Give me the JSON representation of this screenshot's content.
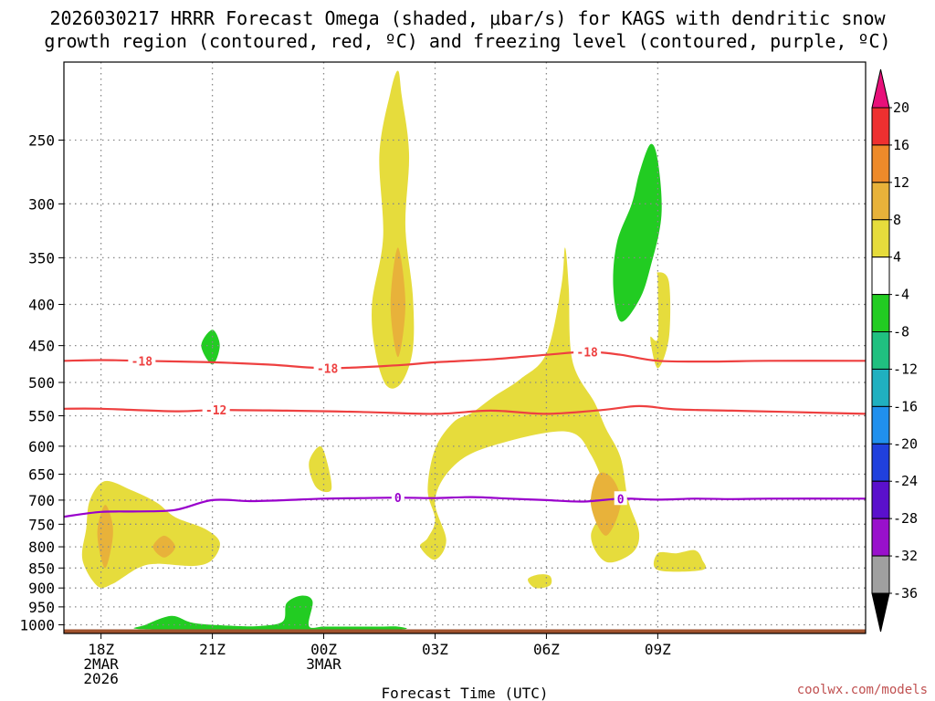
{
  "title": {
    "line1": "2026030217 HRRR Forecast Omega (shaded, μbar/s) for KAGS with dendritic snow",
    "line2": "growth region (contoured, red, ºC) and freezing level (contoured, purple, ºC)"
  },
  "credit": "coolwx.com/models",
  "chart_data": {
    "type": "time-height cross-section",
    "title": "2026030217 HRRR Forecast Omega (shaded, μbar/s) for KAGS with dendritic snow growth region (contoured, red, ºC) and freezing level (contoured, purple, ºC)",
    "xlabel": "Forecast Time (UTC)",
    "ylabel": "",
    "x_range_hours": [
      -1.0,
      20.6
    ],
    "y_range_hpa": [
      1025,
      200
    ],
    "y_scale": "log-pressure (inverted)",
    "x_ticks": [
      {
        "hour": 0,
        "lines": [
          "18Z",
          "2MAR",
          "2026"
        ]
      },
      {
        "hour": 3,
        "lines": [
          "21Z"
        ]
      },
      {
        "hour": 6,
        "lines": [
          "00Z",
          "3MAR"
        ]
      },
      {
        "hour": 9,
        "lines": [
          "03Z"
        ]
      },
      {
        "hour": 12,
        "lines": [
          "06Z"
        ]
      },
      {
        "hour": 15,
        "lines": [
          "09Z"
        ]
      }
    ],
    "y_ticks": [
      250,
      300,
      350,
      400,
      450,
      500,
      550,
      600,
      650,
      700,
      750,
      800,
      850,
      900,
      950,
      1000
    ],
    "colors": {
      "grid": "#888888",
      "dendritic_contour": "#ee4040",
      "freezing_contour": "#9900cc",
      "ground": "#a0522d"
    },
    "colorbar": {
      "labels": [
        "20",
        "16",
        "12",
        "8",
        "4",
        "-4",
        "-8",
        "-12",
        "-16",
        "-20",
        "-24",
        "-28",
        "-32",
        "-36"
      ],
      "colors": [
        "#e8e8e8",
        "#ee3030",
        "#ee8a2a",
        "#e8b23a",
        "#e6dc3c",
        "#ffffff",
        "#22cc22",
        "#20c080",
        "#20b0c0",
        "#2090ee",
        "#2040dd",
        "#5a10cc",
        "#9910cc",
        "#a0a0a0"
      ],
      "top_triangle": "#e8107a",
      "bottom_triangle": "#000000"
    },
    "contours": [
      {
        "name": "dendritic-contour-minus18",
        "label": "-18",
        "color": "#ee4040",
        "label_points": [
          {
            "hour": 1.1,
            "hpa": 470
          },
          {
            "hour": 6.1,
            "hpa": 480
          },
          {
            "hour": 13.1,
            "hpa": 458
          }
        ],
        "points": [
          [
            -1.0,
            470
          ],
          [
            0,
            469
          ],
          [
            1.1,
            470
          ],
          [
            3,
            472
          ],
          [
            4.5,
            475
          ],
          [
            6.1,
            480
          ],
          [
            8,
            476
          ],
          [
            9,
            472
          ],
          [
            10.5,
            468
          ],
          [
            12,
            462
          ],
          [
            13.1,
            458
          ],
          [
            14,
            462
          ],
          [
            15,
            470
          ],
          [
            16.5,
            471
          ],
          [
            18,
            470
          ],
          [
            20.6,
            470
          ]
        ]
      },
      {
        "name": "dendritic-contour-minus12",
        "label": "-12",
        "color": "#ee4040",
        "label_points": [
          {
            "hour": 3.1,
            "hpa": 541
          }
        ],
        "points": [
          [
            -1.0,
            539
          ],
          [
            0,
            539
          ],
          [
            2,
            543
          ],
          [
            3.1,
            541
          ],
          [
            5,
            542
          ],
          [
            7,
            544
          ],
          [
            9,
            547
          ],
          [
            10.5,
            542
          ],
          [
            12,
            547
          ],
          [
            13.5,
            541
          ],
          [
            14.5,
            535
          ],
          [
            15.5,
            540
          ],
          [
            17,
            542
          ],
          [
            18.5,
            544
          ],
          [
            20.6,
            547
          ]
        ]
      },
      {
        "name": "freezing-contour-0",
        "label": "0",
        "color": "#9900cc",
        "label_points": [
          {
            "hour": 8.0,
            "hpa": 695
          },
          {
            "hour": 14.0,
            "hpa": 697
          }
        ],
        "points": [
          [
            -1.0,
            734
          ],
          [
            0,
            724
          ],
          [
            1,
            723
          ],
          [
            2,
            720
          ],
          [
            3,
            700
          ],
          [
            4,
            702
          ],
          [
            5,
            700
          ],
          [
            6,
            697
          ],
          [
            7,
            696
          ],
          [
            8,
            695
          ],
          [
            9,
            696
          ],
          [
            10,
            694
          ],
          [
            11,
            697
          ],
          [
            12,
            700
          ],
          [
            13,
            703
          ],
          [
            14,
            697
          ],
          [
            15,
            699
          ],
          [
            16,
            697
          ],
          [
            17,
            698
          ],
          [
            18,
            697
          ],
          [
            20.6,
            697
          ]
        ]
      }
    ],
    "omega_regions": [
      {
        "name": "omega-plus4-blob-18z",
        "value": 4,
        "fill": "#e6dc3c",
        "points": [
          [
            -0.4,
            760
          ],
          [
            -0.5,
            830
          ],
          [
            -0.1,
            895
          ],
          [
            0.3,
            890
          ],
          [
            1.0,
            850
          ],
          [
            1.5,
            840
          ],
          [
            2.5,
            845
          ],
          [
            3.0,
            830
          ],
          [
            3.2,
            790
          ],
          [
            2.8,
            760
          ],
          [
            2.0,
            735
          ],
          [
            1.5,
            705
          ],
          [
            0.8,
            680
          ],
          [
            0.1,
            663
          ],
          [
            -0.3,
            700
          ]
        ]
      },
      {
        "name": "omega-plus8-core-18z",
        "value": 8,
        "fill": "#e8b23a",
        "points": [
          [
            0.1,
            710
          ],
          [
            -0.1,
            770
          ],
          [
            0.1,
            850
          ],
          [
            0.3,
            790
          ],
          [
            0.3,
            745
          ]
        ]
      },
      {
        "name": "omega-plus8-core-20z",
        "value": 8,
        "fill": "#e8b23a",
        "points": [
          [
            1.4,
            800
          ],
          [
            1.7,
            775
          ],
          [
            2.0,
            800
          ],
          [
            1.7,
            825
          ]
        ]
      },
      {
        "name": "omega-minus4-blob-21z",
        "value": -4,
        "fill": "#22cc22",
        "points": [
          [
            3.0,
            430
          ],
          [
            2.7,
            450
          ],
          [
            3.0,
            475
          ],
          [
            3.2,
            450
          ]
        ]
      },
      {
        "name": "omega-plus4-blob-2330z",
        "value": 4,
        "fill": "#e6dc3c",
        "points": [
          [
            5.6,
            630
          ],
          [
            5.8,
            675
          ],
          [
            6.2,
            680
          ],
          [
            6.1,
            630
          ],
          [
            5.9,
            600
          ]
        ]
      },
      {
        "name": "omega-plus4-plume-01z",
        "value": 4,
        "fill": "#e6dc3c",
        "points": [
          [
            7.8,
            218
          ],
          [
            7.5,
            260
          ],
          [
            7.6,
            330
          ],
          [
            7.3,
            400
          ],
          [
            7.4,
            460
          ],
          [
            7.7,
            505
          ],
          [
            8.1,
            500
          ],
          [
            8.4,
            455
          ],
          [
            8.4,
            390
          ],
          [
            8.2,
            320
          ],
          [
            8.3,
            260
          ],
          [
            8.1,
            220
          ],
          [
            8.0,
            205
          ]
        ]
      },
      {
        "name": "omega-plus8-core-01z",
        "value": 8,
        "fill": "#e8b23a",
        "points": [
          [
            8.0,
            340
          ],
          [
            7.8,
            400
          ],
          [
            8.0,
            465
          ],
          [
            8.2,
            400
          ]
        ]
      },
      {
        "name": "omega-plus4-arch-03z",
        "value": 4,
        "fill": "#e6dc3c",
        "points": [
          [
            8.6,
            800
          ],
          [
            9.0,
            830
          ],
          [
            9.3,
            785
          ],
          [
            9.0,
            700
          ],
          [
            9.5,
            635
          ],
          [
            10.5,
            600
          ],
          [
            12.5,
            575
          ],
          [
            13.2,
            615
          ],
          [
            13.6,
            700
          ],
          [
            13.2,
            775
          ],
          [
            13.6,
            835
          ],
          [
            14.3,
            815
          ],
          [
            14.5,
            770
          ],
          [
            14.2,
            700
          ],
          [
            14.0,
            620
          ],
          [
            13.6,
            570
          ],
          [
            13.3,
            530
          ],
          [
            12.7,
            470
          ],
          [
            12.6,
            380
          ],
          [
            12.5,
            340
          ],
          [
            12.4,
            380
          ],
          [
            12.0,
            460
          ],
          [
            11.3,
            495
          ],
          [
            10.6,
            520
          ],
          [
            10.0,
            545
          ],
          [
            9.5,
            560
          ],
          [
            9.0,
            605
          ],
          [
            8.8,
            680
          ],
          [
            9.0,
            740
          ],
          [
            8.8,
            780
          ]
        ]
      },
      {
        "name": "omega-plus8-core-07z",
        "value": 8,
        "fill": "#e8b23a",
        "points": [
          [
            13.4,
            650
          ],
          [
            13.2,
            710
          ],
          [
            13.6,
            775
          ],
          [
            14.0,
            710
          ],
          [
            13.8,
            660
          ]
        ]
      },
      {
        "name": "omega-plus4-blob-0615z",
        "value": 4,
        "fill": "#e6dc3c",
        "points": [
          [
            11.5,
            878
          ],
          [
            11.7,
            900
          ],
          [
            12.1,
            893
          ],
          [
            12.1,
            870
          ],
          [
            11.8,
            866
          ]
        ]
      },
      {
        "name": "omega-minus4-tower-08z",
        "value": -4,
        "fill": "#22cc22",
        "points": [
          [
            14.3,
            300
          ],
          [
            13.9,
            335
          ],
          [
            13.8,
            380
          ],
          [
            14.0,
            420
          ],
          [
            14.5,
            395
          ],
          [
            14.8,
            360
          ],
          [
            15.1,
            310
          ],
          [
            15.0,
            265
          ],
          [
            14.8,
            253
          ],
          [
            14.5,
            275
          ]
        ]
      },
      {
        "name": "omega-plus4-blob-09z",
        "value": 4,
        "fill": "#e6dc3c",
        "points": [
          [
            15.0,
            375
          ],
          [
            15.0,
            440
          ],
          [
            14.8,
            440
          ],
          [
            15.0,
            480
          ],
          [
            15.3,
            440
          ],
          [
            15.3,
            375
          ],
          [
            15.0,
            365
          ]
        ]
      },
      {
        "name": "omega-plus4-blob-0930z",
        "value": 4,
        "fill": "#e6dc3c",
        "points": [
          [
            15.0,
            815
          ],
          [
            15.0,
            855
          ],
          [
            16.2,
            855
          ],
          [
            16.2,
            830
          ],
          [
            16.0,
            808
          ],
          [
            15.5,
            815
          ]
        ]
      },
      {
        "name": "omega-minus4-surface-1930z",
        "value": -4,
        "fill": "#22cc22",
        "points": [
          [
            1.0,
            1012
          ],
          [
            1.2,
            1000
          ],
          [
            1.9,
            975
          ],
          [
            2.5,
            995
          ],
          [
            3.6,
            1003
          ],
          [
            4.3,
            1003
          ],
          [
            4.9,
            990
          ],
          [
            5.0,
            940
          ],
          [
            5.4,
            920
          ],
          [
            5.7,
            935
          ],
          [
            5.6,
            1003
          ],
          [
            6.0,
            1005
          ],
          [
            6.6,
            1005
          ],
          [
            7.5,
            1005
          ],
          [
            8.0,
            1005
          ],
          [
            8.1,
            1013
          ],
          [
            6.0,
            1013
          ],
          [
            3.0,
            1013
          ]
        ]
      }
    ],
    "ground_band_hpa": [
      1013,
      1025
    ]
  }
}
